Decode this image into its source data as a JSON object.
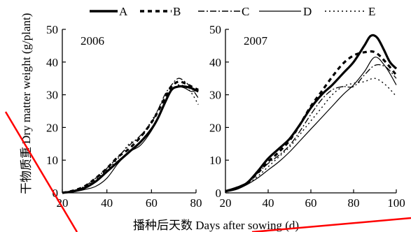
{
  "chart_data": [
    {
      "type": "line",
      "annotation": "2006",
      "xlim": [
        20,
        80
      ],
      "ylim": [
        0,
        50
      ],
      "xticks": [
        20,
        40,
        60,
        80
      ],
      "yticks": [
        0,
        10,
        20,
        30,
        40,
        50
      ],
      "series": [
        {
          "name": "A",
          "x": [
            20,
            25,
            30,
            35,
            40,
            45,
            50,
            55,
            60,
            63,
            66,
            69,
            72,
            75,
            78,
            81
          ],
          "y": [
            0,
            0.5,
            1.5,
            3.5,
            6.5,
            9.5,
            12.5,
            15.5,
            19.5,
            23,
            27.5,
            31.5,
            32.5,
            32.5,
            32,
            31
          ]
        },
        {
          "name": "B",
          "x": [
            20,
            25,
            30,
            35,
            40,
            45,
            50,
            55,
            60,
            63,
            66,
            69,
            72,
            75,
            78,
            81
          ],
          "y": [
            0,
            0.7,
            2,
            4.5,
            7.5,
            11,
            13.5,
            17,
            21.5,
            25,
            29,
            32.5,
            34,
            33.5,
            32.5,
            31.5
          ]
        },
        {
          "name": "C",
          "x": [
            20,
            25,
            30,
            35,
            40,
            45,
            50,
            55,
            60,
            63,
            66,
            69,
            72,
            75,
            78,
            81
          ],
          "y": [
            0,
            0.7,
            2,
            4.5,
            7.5,
            11,
            14.5,
            17.5,
            21.5,
            25.5,
            30,
            33,
            35,
            34,
            32,
            29
          ]
        },
        {
          "name": "D",
          "x": [
            20,
            25,
            30,
            35,
            40,
            45,
            50,
            55,
            60,
            63,
            66,
            69,
            72,
            75,
            78,
            81
          ],
          "y": [
            0,
            0.3,
            1,
            2,
            4.5,
            9,
            12.5,
            14.5,
            19,
            23,
            28,
            31.5,
            32.5,
            32,
            31,
            31.5
          ]
        },
        {
          "name": "E",
          "x": [
            20,
            25,
            30,
            35,
            40,
            45,
            50,
            55,
            60,
            63,
            66,
            69,
            72,
            75,
            78,
            81
          ],
          "y": [
            0,
            0.6,
            1.8,
            4,
            7,
            10.5,
            15,
            17,
            22,
            25.5,
            29,
            31.5,
            33,
            32.5,
            30.5,
            27
          ]
        }
      ]
    },
    {
      "type": "line",
      "annotation": "2007",
      "xlim": [
        20,
        100
      ],
      "ylim": [
        0,
        50
      ],
      "xticks": [
        20,
        40,
        60,
        80,
        100
      ],
      "yticks": [
        0,
        10,
        20,
        30,
        40,
        50
      ],
      "series": [
        {
          "name": "A",
          "x": [
            20,
            25,
            30,
            35,
            40,
            45,
            50,
            55,
            60,
            65,
            70,
            75,
            80,
            85,
            88,
            91,
            94,
            97,
            100
          ],
          "y": [
            0.5,
            1.5,
            3,
            6.5,
            10.5,
            13.5,
            16.5,
            21,
            26,
            30,
            33,
            36.5,
            40,
            45,
            48,
            47.5,
            44,
            40,
            38
          ]
        },
        {
          "name": "B",
          "x": [
            20,
            25,
            30,
            35,
            40,
            45,
            50,
            55,
            60,
            65,
            70,
            75,
            80,
            85,
            90,
            95,
            100
          ],
          "y": [
            0.5,
            1.5,
            3,
            6,
            9.5,
            12.5,
            16,
            21,
            26.5,
            31,
            35.5,
            39.5,
            42,
            43,
            43,
            40,
            36
          ]
        },
        {
          "name": "C",
          "x": [
            20,
            25,
            30,
            35,
            40,
            45,
            50,
            55,
            60,
            65,
            70,
            75,
            80,
            85,
            90,
            95,
            100
          ],
          "y": [
            0.5,
            1.5,
            3,
            6,
            9,
            11.5,
            14.5,
            19,
            24,
            28.5,
            31.5,
            32.5,
            32.5,
            36,
            39,
            38.5,
            35
          ]
        },
        {
          "name": "D",
          "x": [
            20,
            25,
            30,
            35,
            40,
            45,
            50,
            55,
            60,
            65,
            70,
            75,
            80,
            85,
            90,
            95,
            100
          ],
          "y": [
            0.3,
            1,
            2.5,
            4.5,
            7,
            9.5,
            12.5,
            16,
            19.5,
            23,
            26.5,
            30,
            33,
            37,
            41.5,
            38.5,
            33
          ]
        },
        {
          "name": "E",
          "x": [
            20,
            25,
            30,
            35,
            40,
            45,
            50,
            55,
            60,
            65,
            70,
            75,
            80,
            85,
            90,
            95,
            100
          ],
          "y": [
            0.4,
            1.2,
            2.7,
            5,
            8,
            11,
            14,
            18,
            22,
            26,
            30,
            32.5,
            33.5,
            34,
            35,
            33,
            29.5
          ]
        }
      ]
    }
  ],
  "labels": {
    "ylabel_cn": "干物质重",
    "ylabel_en": "Dry matter weight (g/plant)",
    "xlabel": "播种后天数 Days after sowing (d)"
  },
  "legend": [
    "A",
    "B",
    "C",
    "D",
    "E"
  ],
  "colors": {
    "line": "#000000",
    "annotation_line": "#ff0000"
  }
}
